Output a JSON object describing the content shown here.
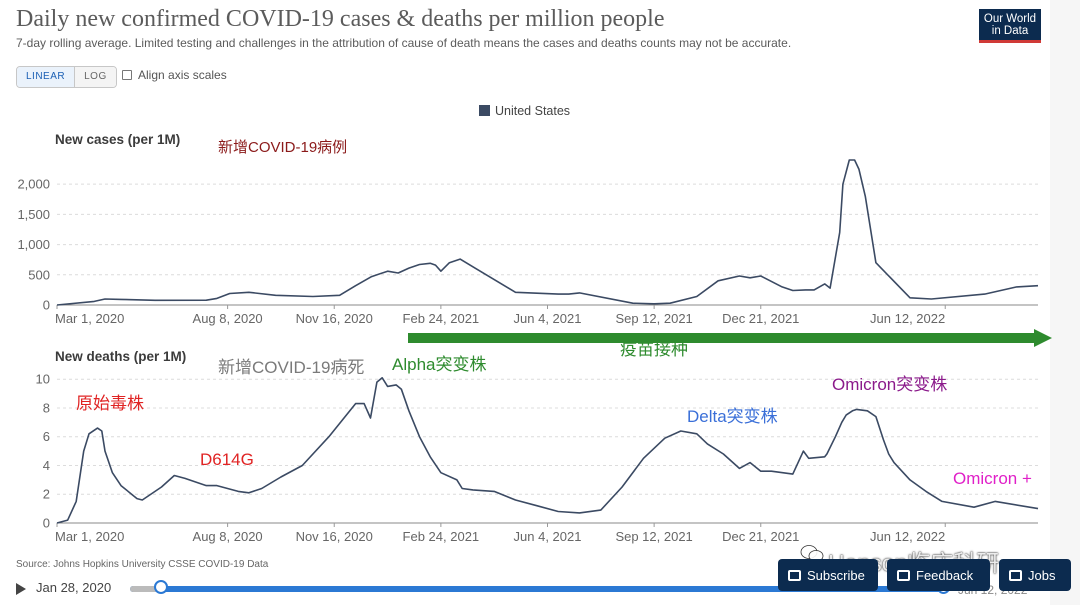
{
  "header": {
    "title": "Daily new confirmed COVID-19 cases & deaths per million people",
    "subtitle": "7-day rolling average. Limited testing and challenges in the attribution of cause of death means the cases and deaths counts may not be accurate.",
    "logo_line1": "Our World",
    "logo_line2": "in Data"
  },
  "controls": {
    "linear_label": "LINEAR",
    "log_label": "LOG",
    "align_label": "Align axis scales"
  },
  "legend": {
    "label": "United States",
    "color": "#3b4a63"
  },
  "source": "Source: Johns Hopkins University CSSE COVID-19 Data",
  "timeline": {
    "start_label": "Jan 28, 2020",
    "end_label": "Jun 12, 2022"
  },
  "footer_buttons": {
    "subscribe": "Subscribe",
    "feedback": "Feedback",
    "jobs": "Jobs"
  },
  "watermark": "Hanson临床科研",
  "x_ticks": [
    "Mar 1, 2020",
    "Aug 8, 2020",
    "Nov 16, 2020",
    "Feb 24, 2021",
    "Jun 4, 2021",
    "Sep 12, 2021",
    "Dec 21, 2021",
    "Jun 12, 2022"
  ],
  "chart_data": [
    {
      "type": "line",
      "ylabel": "New cases (per 1M)",
      "ylim": [
        0,
        2400
      ],
      "y_ticks": [
        "0",
        "500",
        "1,000",
        "1,500",
        "2,000"
      ],
      "y_tick_values": [
        0,
        500,
        1000,
        1500,
        2000
      ],
      "annotations": [
        {
          "text": "新增COVID-19病例",
          "color": "#8b1a1a"
        }
      ],
      "series": [
        {
          "name": "United States",
          "x": [
            0,
            35,
            45,
            60,
            92,
            140,
            150,
            162,
            180,
            205,
            240,
            265,
            280,
            295,
            310,
            320,
            330,
            340,
            350,
            355,
            360,
            368,
            378,
            392,
            430,
            470,
            480,
            490,
            540,
            560,
            575,
            600,
            620,
            640,
            650,
            660,
            680,
            690,
            702,
            710,
            720,
            725,
            734,
            737,
            743,
            748,
            752,
            758,
            768,
            800,
            820,
            870,
            900,
            920
          ],
          "values": [
            0,
            60,
            100,
            92,
            78,
            80,
            110,
            190,
            210,
            160,
            140,
            160,
            320,
            470,
            560,
            530,
            610,
            670,
            690,
            660,
            560,
            700,
            760,
            610,
            210,
            180,
            180,
            200,
            30,
            20,
            30,
            140,
            400,
            480,
            450,
            480,
            300,
            240,
            250,
            250,
            350,
            280,
            1200,
            2000,
            2400,
            2400,
            2250,
            1800,
            700,
            120,
            100,
            180,
            300,
            320
          ]
        }
      ]
    },
    {
      "type": "line",
      "ylabel": "New deaths (per 1M)",
      "ylim": [
        0,
        10.5
      ],
      "y_ticks": [
        "0",
        "2",
        "4",
        "6",
        "8",
        "10"
      ],
      "y_tick_values": [
        0,
        2,
        4,
        6,
        8,
        10
      ],
      "annotations": [
        {
          "text": "新增COVID-19病死",
          "color": "#7a7a7a"
        },
        {
          "text": "Alpha突变株",
          "color": "#2e8b2e"
        },
        {
          "text": "原始毒株",
          "color": "#e02424"
        },
        {
          "text": "D614G",
          "color": "#e02424"
        },
        {
          "text": "Delta突变株",
          "color": "#3a6fd8"
        },
        {
          "text": "Omicron突变株",
          "color": "#8b1a8b"
        },
        {
          "text": "Omicron +",
          "color": "#e020c8"
        },
        {
          "text": "疫苗接种",
          "color": "#2e8b2e"
        }
      ],
      "series": [
        {
          "name": "United States",
          "x": [
            0,
            10,
            18,
            25,
            30,
            38,
            42,
            45,
            52,
            60,
            70,
            75,
            80,
            98,
            110,
            120,
            132,
            140,
            150,
            160,
            170,
            180,
            192,
            210,
            230,
            255,
            268,
            280,
            288,
            294,
            300,
            305,
            310,
            318,
            323,
            330,
            340,
            350,
            360,
            375,
            380,
            390,
            410,
            430,
            450,
            470,
            490,
            510,
            530,
            550,
            570,
            585,
            600,
            610,
            625,
            640,
            650,
            660,
            670,
            690,
            700,
            705,
            720,
            722,
            730,
            736,
            740,
            746,
            750,
            760,
            768,
            775,
            780,
            785,
            790,
            800,
            815,
            830,
            860,
            880,
            920
          ],
          "values": [
            0,
            0.2,
            1.5,
            5,
            6.2,
            6.6,
            6.4,
            5,
            3.5,
            2.6,
            2,
            1.7,
            1.6,
            2.5,
            3.3,
            3.1,
            2.8,
            2.6,
            2.6,
            2.4,
            2.2,
            2.1,
            2.4,
            3.2,
            4,
            6,
            7.2,
            8.3,
            8.3,
            7.3,
            9.8,
            10.1,
            9.5,
            9.6,
            9.3,
            7.8,
            6,
            4.6,
            3.5,
            3,
            2.4,
            2.3,
            2.2,
            1.6,
            1.2,
            0.8,
            0.7,
            0.9,
            2.5,
            4.5,
            5.9,
            6.4,
            6.2,
            5.5,
            4.8,
            3.8,
            4.2,
            3.6,
            3.6,
            3.4,
            5.0,
            4.5,
            4.6,
            4.8,
            6.0,
            7.0,
            7.5,
            7.8,
            7.9,
            7.8,
            7.4,
            5.8,
            4.8,
            4.2,
            3.8,
            3.0,
            2.2,
            1.5,
            1.1,
            1.5,
            1.0
          ]
        }
      ]
    }
  ]
}
